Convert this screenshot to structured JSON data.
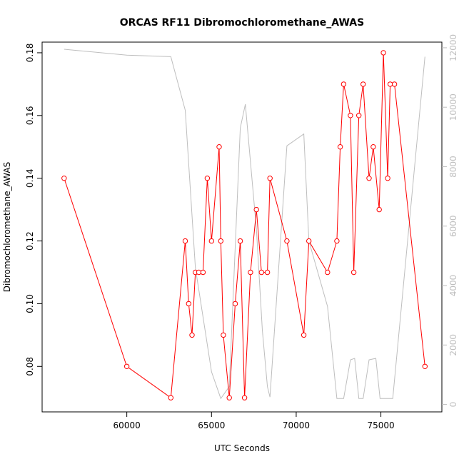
{
  "chart_data": {
    "type": "line",
    "title": "ORCAS RF11 Dibromochloromethane_AWAS",
    "xlabel": "UTC Seconds",
    "ylabel": "Dibromochloromethane_AWAS",
    "xlim": [
      55000,
      78600
    ],
    "ylim": [
      0.0655,
      0.1834
    ],
    "y2lim": [
      -250,
      12190
    ],
    "x_ticks": [
      60000,
      65000,
      70000,
      75000
    ],
    "x_tick_labels": [
      "60000",
      "65000",
      "70000",
      "75000"
    ],
    "y_ticks": [
      0.08,
      0.1,
      0.12,
      0.14,
      0.16,
      0.18
    ],
    "y_tick_labels": [
      "0.08",
      "0.10",
      "0.12",
      "0.14",
      "0.16",
      "0.18"
    ],
    "y2_ticks": [
      0,
      2000,
      4000,
      6000,
      8000,
      10000,
      12000
    ],
    "y2_tick_labels": [
      "0",
      "2000",
      "4000",
      "6000",
      "8000",
      "10000",
      "12000"
    ],
    "grid": false,
    "colors": {
      "series": "#ff0000",
      "altitude": "#bebebe",
      "axis": "#000000"
    },
    "series": [
      {
        "axis": "left",
        "style": "line+points",
        "x": [
          56300,
          60000,
          62600,
          63450,
          63650,
          63850,
          64050,
          64250,
          64500,
          64750,
          65000,
          65450,
          65550,
          65700,
          66050,
          66400,
          66700,
          66950,
          67300,
          67650,
          67950,
          68300,
          68450,
          69450,
          70450,
          70750,
          71850,
          72400,
          72600,
          72800,
          73200,
          73400,
          73700,
          73950,
          74300,
          74550,
          74900,
          75150,
          75400,
          75550,
          75800,
          77600
        ],
        "y": [
          0.14,
          0.08,
          0.07,
          0.12,
          0.1,
          0.09,
          0.11,
          0.11,
          0.11,
          0.14,
          0.12,
          0.15,
          0.12,
          0.09,
          0.07,
          0.1,
          0.12,
          0.07,
          0.11,
          0.13,
          0.11,
          0.11,
          0.14,
          0.12,
          0.09,
          0.12,
          0.11,
          0.12,
          0.15,
          0.17,
          0.16,
          0.11,
          0.16,
          0.17,
          0.14,
          0.15,
          0.13,
          0.18,
          0.14,
          0.17,
          0.17,
          0.08
        ]
      },
      {
        "axis": "right",
        "style": "line",
        "x": [
          56300,
          60000,
          62600,
          63450,
          64050,
          65000,
          65550,
          66050,
          66700,
          67000,
          67650,
          68000,
          68300,
          68450,
          69450,
          70450,
          70750,
          71850,
          72400,
          72800,
          73200,
          73450,
          73700,
          73950,
          74300,
          74700,
          74950,
          75700,
          77600
        ],
        "y": [
          11950,
          11750,
          11700,
          9900,
          4600,
          1100,
          200,
          600,
          9300,
          10100,
          5900,
          2500,
          600,
          250,
          8700,
          9100,
          5500,
          3300,
          200,
          200,
          1500,
          1550,
          200,
          200,
          1500,
          1550,
          200,
          200,
          11700
        ]
      }
    ]
  }
}
